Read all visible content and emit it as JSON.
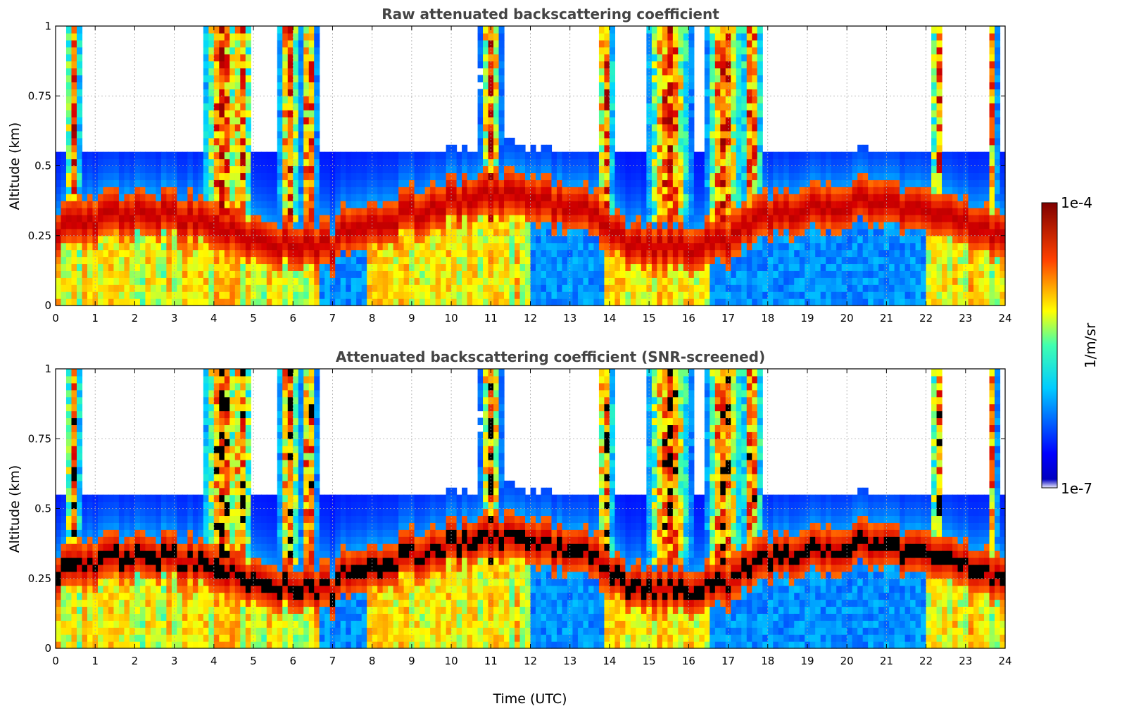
{
  "chart_data": [
    {
      "type": "heatmap",
      "title": "Raw attenuated backscattering coefficient",
      "xlabel": "",
      "ylabel": "Altitude (km)",
      "xlim": [
        0,
        24
      ],
      "ylim": [
        0,
        1
      ],
      "xticks": [
        "0",
        "1",
        "2",
        "3",
        "4",
        "5",
        "6",
        "7",
        "8",
        "9",
        "10",
        "11",
        "12",
        "13",
        "14",
        "15",
        "16",
        "17",
        "18",
        "19",
        "20",
        "21",
        "22",
        "23",
        "24"
      ],
      "yticks": [
        "0",
        "0.25",
        "0.5",
        "0.75",
        "1"
      ],
      "grid": true,
      "screened": false
    },
    {
      "type": "heatmap",
      "title": "Attenuated backscattering coefficient (SNR-screened)",
      "xlabel": "Time (UTC)",
      "ylabel": "Altitude (km)",
      "xlim": [
        0,
        24
      ],
      "ylim": [
        0,
        1
      ],
      "xticks": [
        "0",
        "1",
        "2",
        "3",
        "4",
        "5",
        "6",
        "7",
        "8",
        "9",
        "10",
        "11",
        "12",
        "13",
        "14",
        "15",
        "16",
        "17",
        "18",
        "19",
        "20",
        "21",
        "22",
        "23",
        "24"
      ],
      "yticks": [
        "0",
        "0.25",
        "0.5",
        "0.75",
        "1"
      ],
      "grid": true,
      "screened": true
    }
  ],
  "colorbar": {
    "label": "1/m/sr",
    "max_label": "1e-4",
    "min_label": "1e-7",
    "colormap": "jet",
    "min_color": "#eeeeff",
    "max_color": "#7f0000"
  }
}
